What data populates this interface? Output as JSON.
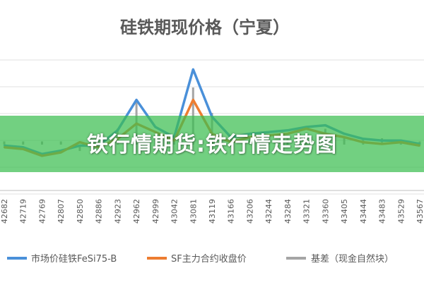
{
  "chart_data": {
    "type": "line",
    "title": "硅铁期现价格（宁夏）",
    "x_tick_labels": [
      "42682",
      "42719",
      "42769",
      "42807",
      "42850",
      "42886",
      "42923",
      "42962",
      "42999",
      "43042",
      "43081",
      "43119",
      "43166",
      "43206",
      "43244",
      "43284",
      "43321",
      "43360",
      "43405",
      "43444",
      "43483",
      "43529",
      "43567"
    ],
    "series": [
      {
        "name": "市场价硅铁FeSi75-B",
        "values": [
          5950,
          5900,
          5700,
          5800,
          5950,
          5950,
          6400,
          7300,
          6500,
          6200,
          8200,
          6800,
          6200,
          6300,
          6350,
          6400,
          6500,
          6550,
          6300,
          6150,
          6100,
          6100,
          6000
        ]
      },
      {
        "name": "SF主力合约收盘价",
        "values": [
          5900,
          5850,
          5650,
          5750,
          6050,
          5900,
          6150,
          6600,
          6350,
          6100,
          7300,
          6300,
          6050,
          6200,
          6250,
          6300,
          6450,
          6300,
          6200,
          6050,
          6000,
          6050,
          5950
        ]
      },
      {
        "name": "基差（现金自然块）",
        "values": [
          50,
          50,
          50,
          50,
          -100,
          50,
          250,
          700,
          150,
          100,
          900,
          500,
          150,
          100,
          100,
          100,
          50,
          250,
          100,
          100,
          100,
          50,
          50
        ]
      }
    ],
    "legend_position": "bottom",
    "grid": true
  },
  "colors": {
    "market_price": "#4a90d9",
    "futures_close": "#ed7d31",
    "basis": "#a5a5a5",
    "banner": "#3cbe50"
  },
  "overlay": {
    "banner_text": "铁行情期货:铁行情走势图"
  }
}
